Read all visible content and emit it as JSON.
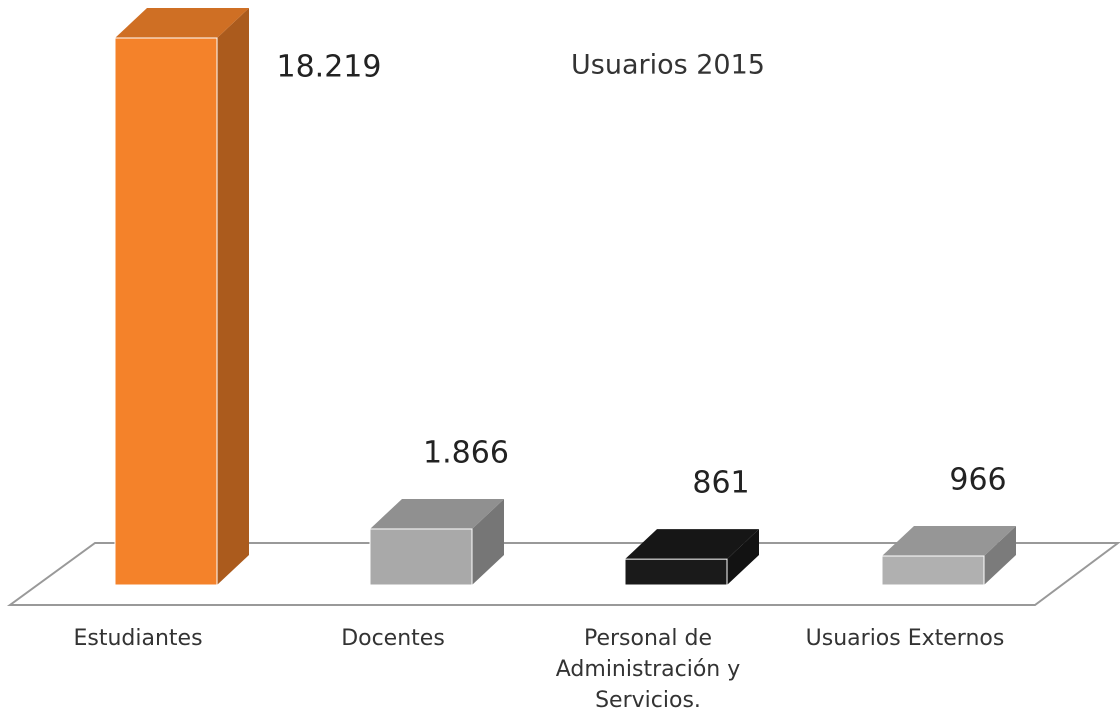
{
  "chart_data": {
    "type": "bar3d",
    "title": "Usuarios 2015",
    "categories": [
      "Estudiantes",
      "Docentes",
      "Personal de Administración y Servicios.",
      "Usuarios Externos"
    ],
    "values": [
      18219,
      1866,
      861,
      966
    ],
    "value_labels": [
      "18.219",
      "1.866",
      "861",
      "966"
    ],
    "colors": [
      "#f4822a",
      "#a9a9a9",
      "#1a1a1a",
      "#b0b0b0"
    ]
  }
}
